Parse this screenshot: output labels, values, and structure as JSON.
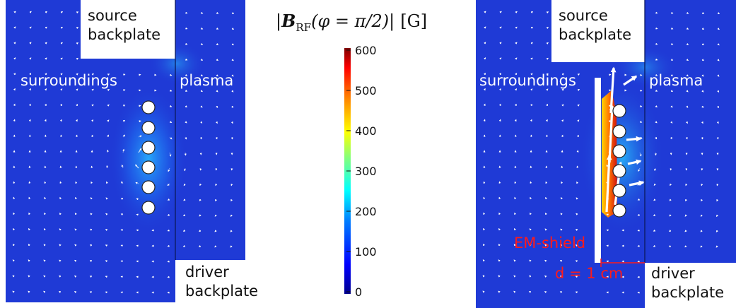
{
  "title": {
    "prefix": "|",
    "symbol": "B",
    "subscript": "RF",
    "argument": "(φ = π/2)|",
    "unit": "[G]"
  },
  "colorbar": {
    "ticks": [
      "600",
      "500",
      "400",
      "300",
      "200",
      "100",
      "0"
    ],
    "tick_values": [
      600,
      500,
      400,
      300,
      200,
      100,
      0
    ],
    "min": 0,
    "max": 600,
    "colormap": [
      "#00008f",
      "#0000ff",
      "#0080ff",
      "#00ffff",
      "#80ff80",
      "#ffff00",
      "#ff8000",
      "#ff0000",
      "#800000"
    ]
  },
  "left_panel": {
    "source_backplate": [
      "source",
      "backplate"
    ],
    "surroundings": "surroundings",
    "plasma": "plasma",
    "driver_backplate": [
      "driver",
      "backplate"
    ]
  },
  "right_panel": {
    "source_backplate": [
      "source",
      "backplate"
    ],
    "surroundings": "surroundings",
    "plasma": "plasma",
    "em_shield": "EM-shield",
    "distance": "d = 1 cm",
    "driver_backplate": [
      "driver",
      "backplate"
    ]
  },
  "colors": {
    "background_field": "#1f3ad6",
    "white": "#ffffff",
    "annotation_red": "#ff1a1a"
  }
}
